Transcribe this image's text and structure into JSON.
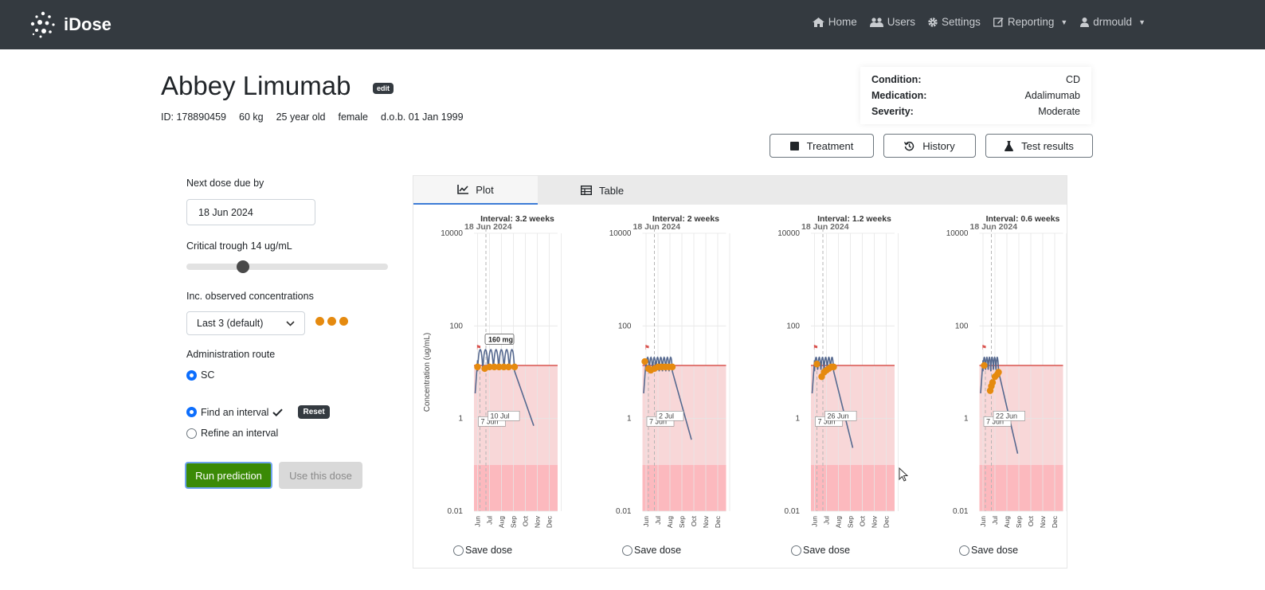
{
  "navbar": {
    "brand": "iDose",
    "items": [
      {
        "label": "Home",
        "icon": "home-icon"
      },
      {
        "label": "Users",
        "icon": "users-icon"
      },
      {
        "label": "Settings",
        "icon": "gear-icon"
      },
      {
        "label": "Reporting",
        "icon": "edit-icon"
      },
      {
        "label": "drmould",
        "icon": "user-icon"
      }
    ]
  },
  "patient": {
    "name": "Abbey Limumab",
    "edit_label": "edit",
    "id": "ID: 178890459",
    "weight": "60 kg",
    "age": "25 year old",
    "sex": "female",
    "dob": "d.o.b. 01 Jan 1999"
  },
  "info": {
    "condition_label": "Condition:",
    "condition": "CD",
    "medication_label": "Medication:",
    "medication": "Adalimumab",
    "severity_label": "Severity:",
    "severity": "Moderate"
  },
  "actions": {
    "treatment": "Treatment",
    "history": "History",
    "test_results": "Test results"
  },
  "sidebar": {
    "next_dose_label": "Next dose due by",
    "next_dose_value": "18 Jun 2024",
    "critical_trough_label": "Critical trough 14 ug/mL",
    "critical_trough_fraction": 0.28,
    "observed_label": "Inc. observed concentrations",
    "observed_select": "Last 3 (default)",
    "route_label": "Administration route",
    "route_option": "SC",
    "find_interval": "Find an interval",
    "reset_label": "Reset",
    "refine_interval": "Refine an interval",
    "run_button": "Run prediction",
    "use_button": "Use this dose"
  },
  "tabs": {
    "plot": "Plot",
    "table": "Table"
  },
  "save_dose_label": "Save dose",
  "colors": {
    "trough_line": "#d9534f",
    "band_light": "#f8d7d8",
    "band_dark": "#fcb9be",
    "curve": "#56698f",
    "observed": "#e58a0f",
    "run_green": "#3a8a06"
  },
  "chart_data": [
    {
      "type": "line",
      "title": "Interval: 3.2 weeks",
      "dose_date": "18 Jun 2024",
      "ylabel": "Concentration (ug/mL)",
      "yscale": "log",
      "ylim": [
        0.01,
        10000
      ],
      "yticks": [
        10000,
        100,
        1,
        0.01
      ],
      "x_ticks": [
        "Jun",
        "Jul",
        "Aug",
        "Sep",
        "Oct",
        "Nov",
        "Dec"
      ],
      "trough": 14,
      "annotation_dose": "160 mg",
      "annotations": [
        "7 Jun",
        "10 Jul"
      ],
      "observed": [
        [
          0.3,
          13
        ],
        [
          0.9,
          12
        ],
        [
          1.3,
          13
        ],
        [
          1.7,
          13
        ],
        [
          2.1,
          13
        ],
        [
          2.5,
          13
        ],
        [
          2.9,
          13
        ],
        [
          3.4,
          13
        ]
      ]
    },
    {
      "type": "line",
      "title": "Interval: 2 weeks",
      "dose_date": "18 Jun 2024",
      "yscale": "log",
      "ylim": [
        0.01,
        10000
      ],
      "yticks": [
        10000,
        100,
        1,
        0.01
      ],
      "x_ticks": [
        "Jun",
        "Jul",
        "Aug",
        "Sep",
        "Oct",
        "Nov",
        "Dec"
      ],
      "trough": 14,
      "annotations": [
        "7 Jun",
        "2 Jul"
      ],
      "observed": [
        [
          0.2,
          17
        ],
        [
          0.5,
          12
        ],
        [
          0.7,
          11
        ],
        [
          1.0,
          12
        ],
        [
          1.3,
          13
        ],
        [
          1.6,
          13
        ],
        [
          1.9,
          13
        ],
        [
          2.2,
          13
        ],
        [
          2.5,
          13
        ]
      ]
    },
    {
      "type": "line",
      "title": "Interval: 1.2 weeks",
      "dose_date": "18 Jun 2024",
      "yscale": "log",
      "ylim": [
        0.01,
        10000
      ],
      "yticks": [
        10000,
        100,
        1,
        0.01
      ],
      "x_ticks": [
        "Jun",
        "Jul",
        "Aug",
        "Sep",
        "Oct",
        "Nov",
        "Dec"
      ],
      "trough": 14,
      "annotations": [
        "7 Jun",
        "26 Jun"
      ],
      "observed": [
        [
          0.5,
          15
        ],
        [
          0.9,
          8
        ],
        [
          1.1,
          10
        ],
        [
          1.3,
          11
        ],
        [
          1.5,
          12
        ],
        [
          1.7,
          13
        ],
        [
          1.9,
          13
        ]
      ]
    },
    {
      "type": "line",
      "title": "Interval: 0.6 weeks",
      "dose_date": "18 Jun 2024",
      "yscale": "log",
      "ylim": [
        0.01,
        10000
      ],
      "yticks": [
        10000,
        100,
        1,
        0.01
      ],
      "x_ticks": [
        "Jun",
        "Jul",
        "Aug",
        "Sep",
        "Oct",
        "Nov",
        "Dec"
      ],
      "trough": 14,
      "annotations": [
        "7 Jun",
        "22 Jun"
      ],
      "observed": [
        [
          0.4,
          14
        ],
        [
          0.9,
          4
        ],
        [
          1.0,
          5
        ],
        [
          1.1,
          6
        ],
        [
          1.3,
          8
        ],
        [
          1.5,
          9
        ],
        [
          1.6,
          10
        ]
      ]
    }
  ]
}
